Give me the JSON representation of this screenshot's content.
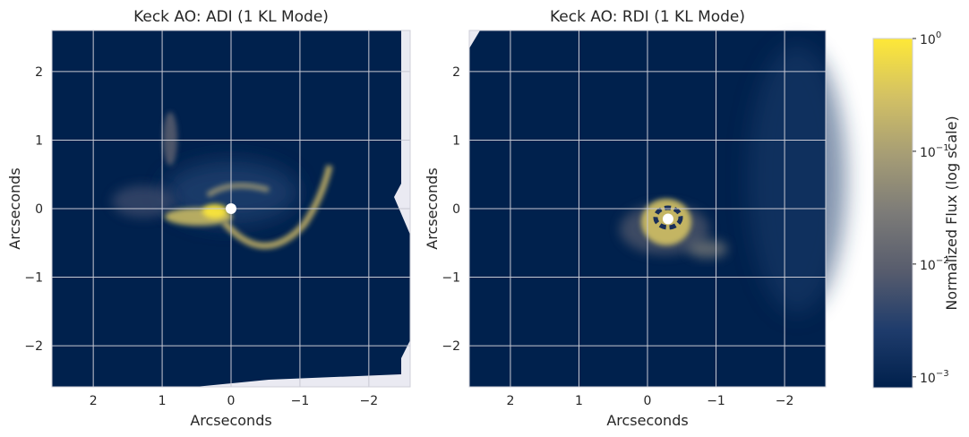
{
  "chart_data": [
    {
      "type": "heatmap",
      "title": "Keck AO: ADI (1 KL Mode)",
      "xlabel": "Arcseconds",
      "ylabel": "Arcseconds",
      "xlim": [
        2.6,
        -2.6
      ],
      "ylim": [
        -2.6,
        2.6
      ],
      "xticks": [
        2,
        1,
        0,
        -1,
        -2
      ],
      "xticklabels": [
        "2",
        "1",
        "0",
        "−1",
        "−2"
      ],
      "yticks": [
        -2,
        -1,
        0,
        1,
        2
      ],
      "yticklabels": [
        "−2",
        "−1",
        "0",
        "1",
        "2"
      ],
      "grid": true,
      "star_marker": {
        "x": 0.0,
        "y": 0.0
      },
      "bright_regions": [
        {
          "shape": "arc",
          "from": [
            0.25,
            -0.15
          ],
          "to": [
            -1.4,
            0.55
          ],
          "via": [
            -0.6,
            -0.55
          ],
          "level": 0.3
        },
        {
          "shape": "blob",
          "x": 0.6,
          "y": -0.1,
          "rx": 0.5,
          "ry": 0.15,
          "level": 0.6
        },
        {
          "shape": "blob",
          "x": 0.8,
          "y": 0.9,
          "rx": 0.12,
          "ry": 0.4,
          "level": 0.04
        },
        {
          "shape": "blob",
          "x": 0.0,
          "y": 0.3,
          "rx": 0.9,
          "ry": 0.45,
          "level": 0.02
        }
      ]
    },
    {
      "type": "heatmap",
      "title": "Keck AO: RDI (1 KL Mode)",
      "xlabel": "Arcseconds",
      "ylabel": "Arcseconds",
      "xlim": [
        2.6,
        -2.6
      ],
      "ylim": [
        -2.6,
        2.6
      ],
      "xticks": [
        2,
        1,
        0,
        -1,
        -2
      ],
      "xticklabels": [
        "2",
        "1",
        "0",
        "−1",
        "−2"
      ],
      "yticks": [
        -2,
        -1,
        0,
        1,
        2
      ],
      "yticklabels": [
        "−2",
        "−1",
        "0",
        "1",
        "2"
      ],
      "grid": true,
      "star_marker": {
        "x": -0.3,
        "y": -0.15
      },
      "bright_regions": [
        {
          "shape": "blob",
          "x": -0.25,
          "y": -0.15,
          "rx": 0.4,
          "ry": 0.32,
          "level": 0.25
        },
        {
          "shape": "blob",
          "x": -0.35,
          "y": -0.4,
          "rx": 0.45,
          "ry": 0.22,
          "level": 0.08
        }
      ]
    }
  ],
  "colorbar": {
    "label": "Normalized Flux (log scale)",
    "colormap": "cividis",
    "scale": "log",
    "range": [
      0.0008,
      1
    ],
    "ticks": [
      1,
      0.1,
      0.01,
      0.001
    ],
    "ticklabels": [
      {
        "base": "10",
        "exp": "0"
      },
      {
        "base": "10",
        "exp": "−1"
      },
      {
        "base": "10",
        "exp": "−2"
      },
      {
        "base": "10",
        "exp": "−3"
      }
    ],
    "colors": [
      "#00204c",
      "#1f3c6c",
      "#575c6d",
      "#7c7b78",
      "#a69d75",
      "#d3c164",
      "#fee838"
    ]
  }
}
